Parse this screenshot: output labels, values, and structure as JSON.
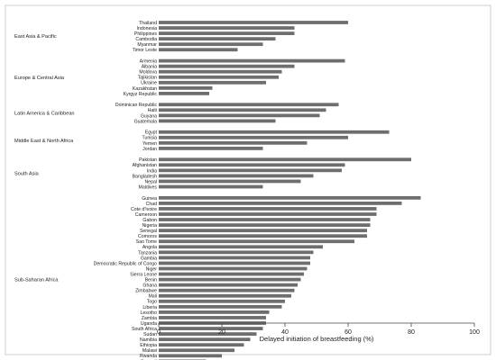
{
  "chart_data": {
    "type": "bar",
    "orientation": "horizontal",
    "xlabel": "Delayed initiation of breastfeeding (%)",
    "xlim": [
      0,
      100
    ],
    "xticks": [
      0,
      20,
      40,
      60,
      80,
      100
    ],
    "grid": false,
    "bar_color": "#6e6e6e",
    "groups": [
      {
        "name": "East Asia & Pacific",
        "items": [
          {
            "label": "Thailand",
            "value": 60
          },
          {
            "label": "Indonesia",
            "value": 43
          },
          {
            "label": "Philippines",
            "value": 43
          },
          {
            "label": "Cambodia",
            "value": 37
          },
          {
            "label": "Myanmar",
            "value": 33
          },
          {
            "label": "Timor Leste",
            "value": 25
          }
        ]
      },
      {
        "name": "Europe & Central Asia",
        "items": [
          {
            "label": "Armenia",
            "value": 59
          },
          {
            "label": "Albania",
            "value": 43
          },
          {
            "label": "Moldova",
            "value": 39
          },
          {
            "label": "Tajikistan",
            "value": 38
          },
          {
            "label": "Ukraine",
            "value": 34
          },
          {
            "label": "Kazakhstan",
            "value": 17
          },
          {
            "label": "Kyrgyz Republic",
            "value": 16
          }
        ]
      },
      {
        "name": "Latin America & Caribbean",
        "items": [
          {
            "label": "Dominican Republic",
            "value": 57
          },
          {
            "label": "Haiti",
            "value": 53
          },
          {
            "label": "Guyana",
            "value": 51
          },
          {
            "label": "Guatemala",
            "value": 37
          }
        ]
      },
      {
        "name": "Middle East & North Africa",
        "items": [
          {
            "label": "Egypt",
            "value": 73
          },
          {
            "label": "Tunisia",
            "value": 60
          },
          {
            "label": "Yemen",
            "value": 47
          },
          {
            "label": "Jordan",
            "value": 33
          }
        ]
      },
      {
        "name": "South Asia",
        "items": [
          {
            "label": "Pakistan",
            "value": 80
          },
          {
            "label": "Afghanistan",
            "value": 59
          },
          {
            "label": "India",
            "value": 58
          },
          {
            "label": "Bangladesh",
            "value": 49
          },
          {
            "label": "Nepal",
            "value": 45
          },
          {
            "label": "Maldives",
            "value": 33
          }
        ]
      },
      {
        "name": "Sub-Saharan Africa",
        "items": [
          {
            "label": "Guinea",
            "value": 83
          },
          {
            "label": "Chad",
            "value": 77
          },
          {
            "label": "Cote d'Ivoire",
            "value": 69
          },
          {
            "label": "Cameroon",
            "value": 69
          },
          {
            "label": "Gabon",
            "value": 67
          },
          {
            "label": "Nigeria",
            "value": 67
          },
          {
            "label": "Senegal",
            "value": 66
          },
          {
            "label": "Comoros",
            "value": 66
          },
          {
            "label": "Sao Tome",
            "value": 62
          },
          {
            "label": "Angola",
            "value": 52
          },
          {
            "label": "Tanzania",
            "value": 49
          },
          {
            "label": "Gambia",
            "value": 48
          },
          {
            "label": "Democratic Republic of Congo",
            "value": 48
          },
          {
            "label": "Niger",
            "value": 47
          },
          {
            "label": "Sierra Leone",
            "value": 46
          },
          {
            "label": "Benin",
            "value": 45
          },
          {
            "label": "Ghana",
            "value": 44
          },
          {
            "label": "Zimbabwe",
            "value": 43
          },
          {
            "label": "Mali",
            "value": 42
          },
          {
            "label": "Togo",
            "value": 40
          },
          {
            "label": "Liberia",
            "value": 39
          },
          {
            "label": "Lesotho",
            "value": 35
          },
          {
            "label": "Zambia",
            "value": 34
          },
          {
            "label": "Uganda",
            "value": 34
          },
          {
            "label": "South Africa",
            "value": 33
          },
          {
            "label": "Sudan",
            "value": 31
          },
          {
            "label": "Namibia",
            "value": 29
          },
          {
            "label": "Ethiopia",
            "value": 27
          },
          {
            "label": "Malawi",
            "value": 24
          },
          {
            "label": "Rwanda",
            "value": 20
          },
          {
            "label": "Burundi",
            "value": 15
          }
        ]
      }
    ]
  }
}
